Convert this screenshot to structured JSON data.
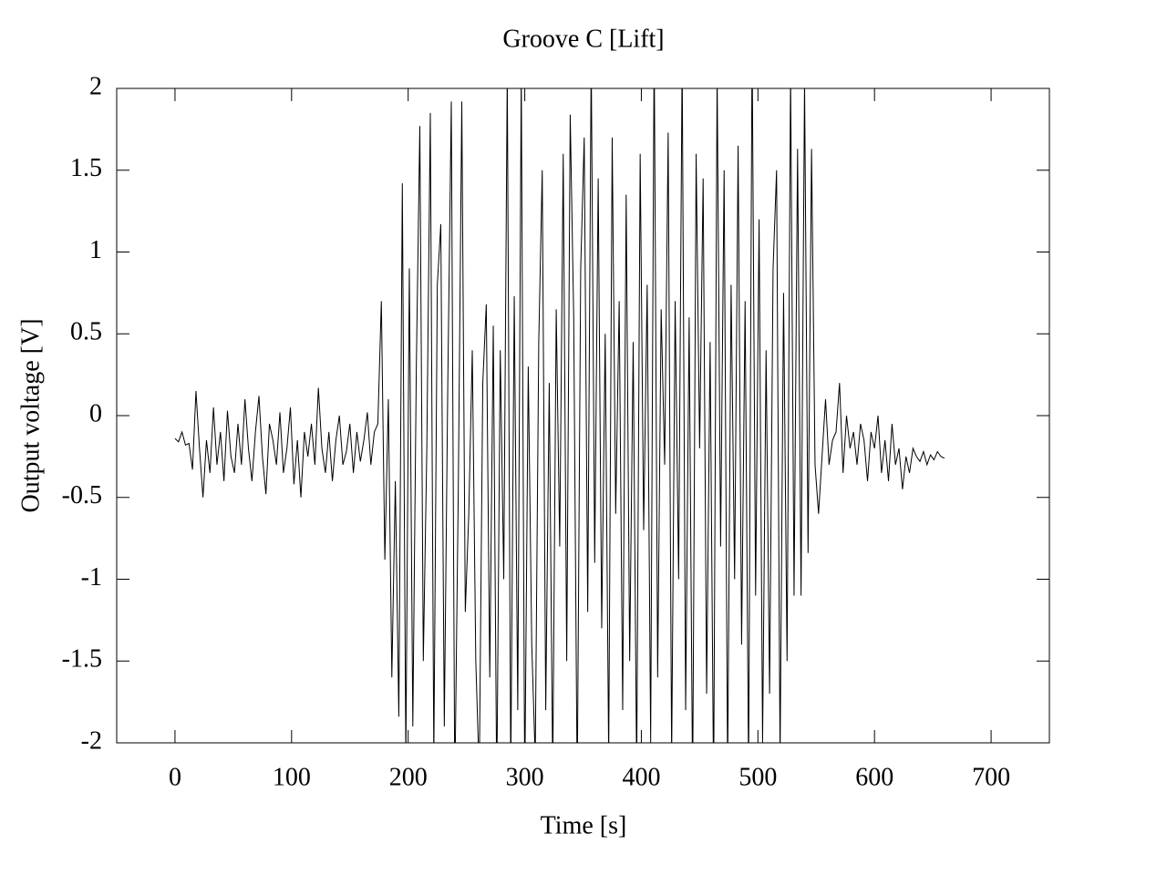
{
  "chart_data": {
    "type": "line",
    "title": "Groove C [Lift]",
    "x_label": "Time [s]",
    "y_label": "Output voltage [V]",
    "xlim": [
      -50,
      750
    ],
    "ylim": [
      -2,
      2
    ],
    "xticks": [
      0,
      100,
      200,
      300,
      400,
      500,
      600,
      700
    ],
    "yticks": [
      -2,
      -1.5,
      -1,
      -0.5,
      0,
      0.5,
      1,
      1.5,
      2
    ],
    "grid": false,
    "x": [
      0,
      3,
      6,
      9,
      12,
      15,
      18,
      21,
      24,
      27,
      30,
      33,
      36,
      39,
      42,
      45,
      48,
      51,
      54,
      57,
      60,
      63,
      66,
      69,
      72,
      75,
      78,
      81,
      84,
      87,
      90,
      93,
      96,
      99,
      102,
      105,
      108,
      111,
      114,
      117,
      120,
      123,
      126,
      129,
      132,
      135,
      138,
      141,
      144,
      147,
      150,
      153,
      156,
      159,
      162,
      165,
      168,
      171,
      174,
      177,
      180,
      183,
      186,
      189,
      192,
      195,
      198,
      201,
      204,
      207,
      210,
      213,
      216,
      219,
      222,
      225,
      228,
      231,
      234,
      237,
      240,
      243,
      246,
      249,
      252,
      255,
      258,
      261,
      264,
      267,
      270,
      273,
      276,
      279,
      282,
      285,
      288,
      291,
      294,
      297,
      300,
      303,
      306,
      309,
      312,
      315,
      318,
      321,
      324,
      327,
      330,
      333,
      336,
      339,
      342,
      345,
      348,
      351,
      354,
      357,
      360,
      363,
      366,
      369,
      372,
      375,
      378,
      381,
      384,
      387,
      390,
      393,
      396,
      399,
      402,
      405,
      408,
      411,
      414,
      417,
      420,
      423,
      426,
      429,
      432,
      435,
      438,
      441,
      444,
      447,
      450,
      453,
      456,
      459,
      462,
      465,
      468,
      471,
      474,
      477,
      480,
      483,
      486,
      489,
      492,
      495,
      498,
      501,
      504,
      507,
      510,
      513,
      516,
      519,
      522,
      525,
      528,
      531,
      534,
      537,
      540,
      543,
      546,
      549,
      552,
      555,
      558,
      561,
      564,
      567,
      570,
      573,
      576,
      579,
      582,
      585,
      588,
      591,
      594,
      597,
      600,
      603,
      606,
      609,
      612,
      615,
      618,
      621,
      624,
      627,
      630,
      633,
      636,
      639,
      642,
      645,
      648,
      651,
      654,
      657,
      660
    ],
    "series": [
      {
        "name": "Output voltage",
        "color": "#000000",
        "values": [
          -0.14,
          -0.16,
          -0.1,
          -0.18,
          -0.17,
          -0.33,
          0.15,
          -0.2,
          -0.5,
          -0.15,
          -0.35,
          0.05,
          -0.3,
          -0.1,
          -0.4,
          0.03,
          -0.25,
          -0.35,
          -0.05,
          -0.3,
          0.1,
          -0.2,
          -0.4,
          -0.1,
          0.12,
          -0.25,
          -0.48,
          -0.05,
          -0.15,
          -0.3,
          0.02,
          -0.35,
          -0.2,
          0.05,
          -0.42,
          -0.15,
          -0.5,
          -0.1,
          -0.25,
          -0.05,
          -0.3,
          0.17,
          -0.2,
          -0.35,
          -0.1,
          -0.4,
          -0.15,
          0.0,
          -0.3,
          -0.22,
          -0.05,
          -0.35,
          -0.1,
          -0.28,
          -0.15,
          0.02,
          -0.3,
          -0.1,
          -0.05,
          0.7,
          -0.88,
          0.1,
          -1.6,
          -0.4,
          -1.84,
          1.42,
          -2.1,
          0.9,
          -1.9,
          0.3,
          1.77,
          -1.5,
          -0.2,
          1.85,
          -2.1,
          0.8,
          1.17,
          -1.9,
          0.2,
          1.92,
          -2.3,
          -0.45,
          1.92,
          -1.2,
          -0.6,
          0.4,
          -1.5,
          -2.2,
          0.2,
          0.68,
          -1.6,
          0.55,
          -2.3,
          0.4,
          -1.0,
          2.1,
          -2.2,
          0.73,
          -1.8,
          2.1,
          -2.3,
          0.3,
          -1.4,
          -2.1,
          0.45,
          1.5,
          -1.8,
          0.2,
          -2.2,
          0.65,
          -0.8,
          1.6,
          -1.5,
          1.84,
          0.6,
          -2.3,
          0.9,
          1.7,
          -1.2,
          2.2,
          -0.9,
          1.45,
          -1.3,
          0.5,
          -2.1,
          1.7,
          -0.6,
          0.7,
          -1.8,
          1.35,
          -1.5,
          0.45,
          -2.2,
          1.6,
          -0.7,
          0.8,
          -2.0,
          2.3,
          -1.6,
          0.65,
          -0.3,
          1.73,
          -2.1,
          0.7,
          -1.0,
          2.2,
          -1.8,
          0.6,
          -2.3,
          1.6,
          -0.2,
          1.45,
          -1.7,
          0.45,
          -2.3,
          2.1,
          -0.8,
          1.5,
          -2.2,
          0.8,
          -1.0,
          1.65,
          -1.4,
          0.7,
          -2.2,
          2.3,
          -1.1,
          1.2,
          -2.0,
          0.4,
          -1.7,
          0.9,
          1.5,
          -2.1,
          0.75,
          -1.5,
          2.1,
          -1.1,
          1.63,
          -1.1,
          2.05,
          -0.84,
          1.63,
          -0.3,
          -0.6,
          -0.25,
          0.1,
          -0.3,
          -0.15,
          -0.1,
          0.2,
          -0.35,
          0.0,
          -0.2,
          -0.1,
          -0.3,
          -0.05,
          -0.15,
          -0.4,
          -0.1,
          -0.2,
          0.0,
          -0.35,
          -0.15,
          -0.4,
          -0.05,
          -0.3,
          -0.2,
          -0.45,
          -0.25,
          -0.35,
          -0.2,
          -0.25,
          -0.28,
          -0.22,
          -0.3,
          -0.24,
          -0.27,
          -0.22,
          -0.25,
          -0.26
        ]
      }
    ]
  }
}
